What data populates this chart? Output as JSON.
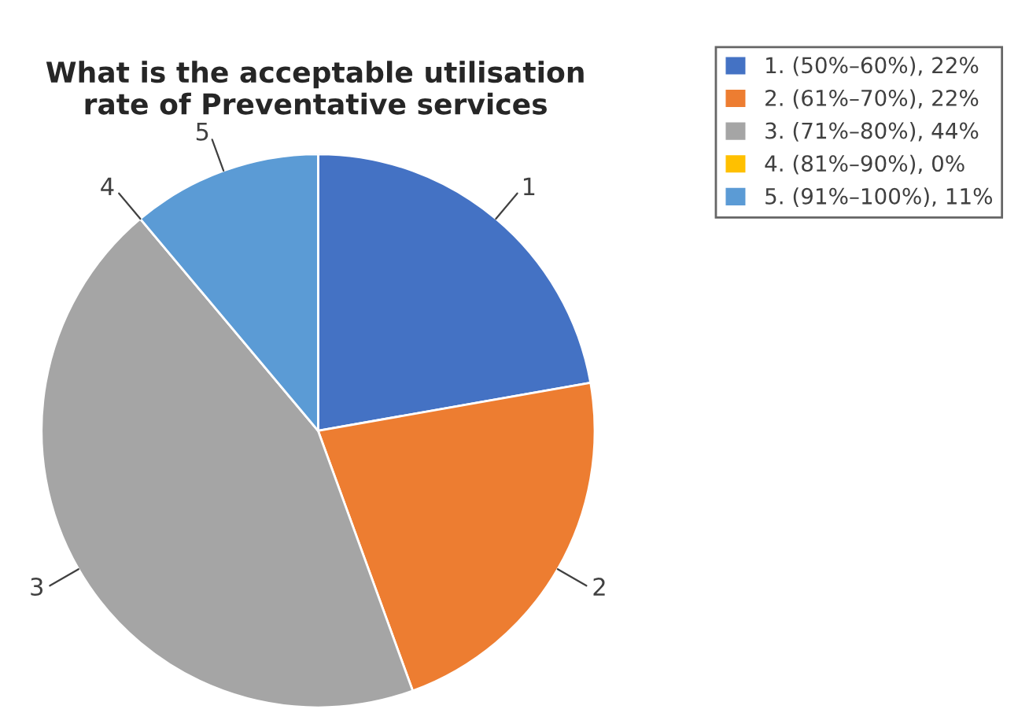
{
  "chart_data": {
    "type": "pie",
    "title": "What is the acceptable utilisation\nrate of Preventative services",
    "categories": [
      "1. (50%–60%), 22%",
      "2. (61%–70%), 22%",
      "3. (71%–80%), 44%",
      "4. (81%–90%), 0%",
      "5. (91%–100%), 11%"
    ],
    "values": [
      22,
      22,
      44,
      0,
      11
    ],
    "colors": [
      "#4472c4",
      "#ed7d31",
      "#a5a5a5",
      "#ffc000",
      "#5b9bd5"
    ],
    "annotations": [
      "1",
      "2",
      "3",
      "4",
      "5"
    ],
    "legend": "top right"
  }
}
